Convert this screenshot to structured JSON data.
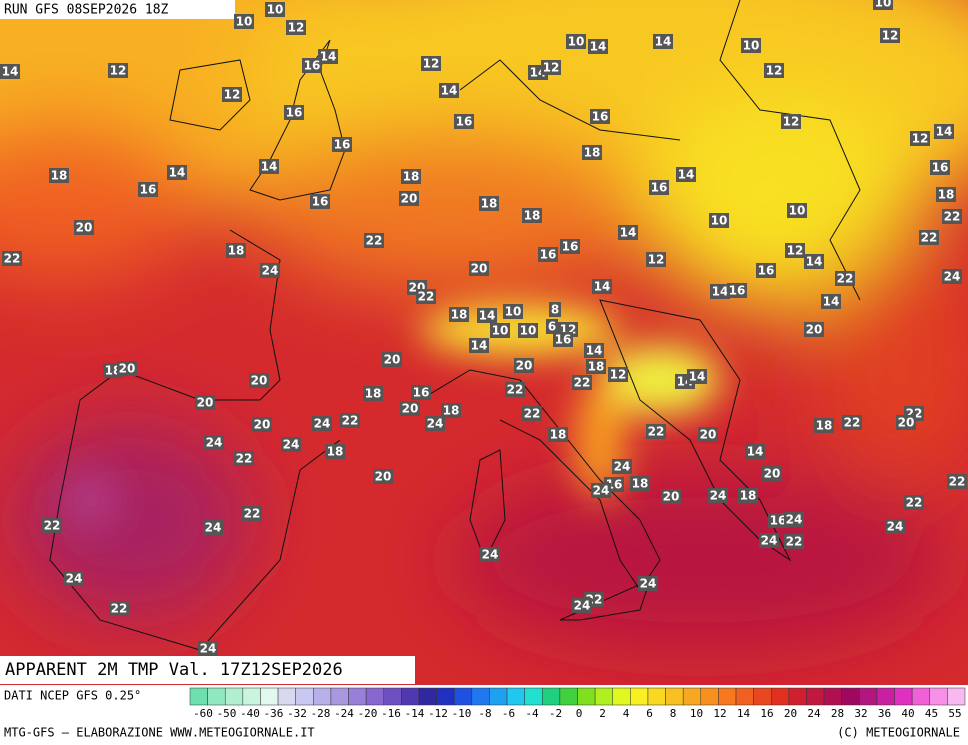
{
  "header": {
    "run": "RUN GFS 08SEP2026 18Z"
  },
  "title": "APPARENT 2M TMP Val. 17Z12SEP2026",
  "footer": {
    "source": "DATI NCEP GFS 0.25°",
    "credit": "MTG-GFS — ELABORAZIONE WWW.METEOGIORNALE.IT",
    "copyright": "(C) METEOGIORNALE"
  },
  "legend": {
    "labels": [
      -60,
      -50,
      -40,
      -36,
      -32,
      -28,
      -24,
      -20,
      -16,
      -14,
      -12,
      -10,
      -8,
      -6,
      -4,
      -2,
      0,
      2,
      4,
      6,
      8,
      10,
      12,
      14,
      16,
      20,
      24,
      28,
      32,
      36,
      40,
      45,
      55
    ],
    "colors": [
      "#6ee0b0",
      "#90e8c0",
      "#b0f0d0",
      "#c8f4e0",
      "#e0f8f0",
      "#d8d8f0",
      "#c8c8f0",
      "#b8b0e8",
      "#a898e0",
      "#9880d8",
      "#8868d0",
      "#7050c0",
      "#5038b0",
      "#3028a0",
      "#2030c0",
      "#2050e0",
      "#2078f0",
      "#20a0f0",
      "#20c8f0",
      "#20e0d0",
      "#20d080",
      "#40d040",
      "#80e020",
      "#b0f020",
      "#e0f820",
      "#f8f020",
      "#f8d820",
      "#f8c020",
      "#f8a820",
      "#f89020",
      "#f87820",
      "#f06020",
      "#e84820",
      "#e03020",
      "#d02030",
      "#c01840",
      "#b01050",
      "#a00860",
      "#b01880",
      "#c820a0",
      "#e030c0",
      "#f060d8",
      "#f890e8",
      "#f8b8f0"
    ]
  },
  "map": {
    "labels": [
      10,
      10,
      12,
      14,
      16,
      14,
      12,
      12,
      12,
      10,
      14,
      14,
      10,
      12,
      10,
      12,
      14,
      12,
      14,
      16,
      16,
      16,
      12,
      12,
      14,
      16,
      18,
      16,
      14,
      14,
      18,
      20,
      18,
      16,
      14,
      16,
      18,
      22,
      16,
      18,
      18,
      10,
      10,
      20,
      22,
      14,
      22,
      22,
      18,
      24,
      16,
      16,
      12,
      12,
      14,
      16,
      22,
      24,
      20,
      20,
      22,
      14,
      14,
      16,
      14,
      18,
      14,
      10,
      8,
      6,
      12,
      10,
      10,
      20,
      14,
      16,
      14,
      20,
      18,
      20,
      18,
      20,
      12,
      14,
      14,
      20,
      22,
      22,
      16,
      18,
      20,
      20,
      18,
      22,
      24,
      20,
      24,
      22,
      24,
      24,
      18,
      18,
      22,
      20,
      18,
      22,
      22,
      20,
      14,
      22,
      20,
      24,
      20,
      16,
      18,
      24,
      20,
      24,
      18,
      22,
      22,
      24,
      22,
      24,
      22,
      16,
      24,
      24,
      22,
      24,
      24,
      24,
      22,
      24,
      22,
      24
    ]
  }
}
